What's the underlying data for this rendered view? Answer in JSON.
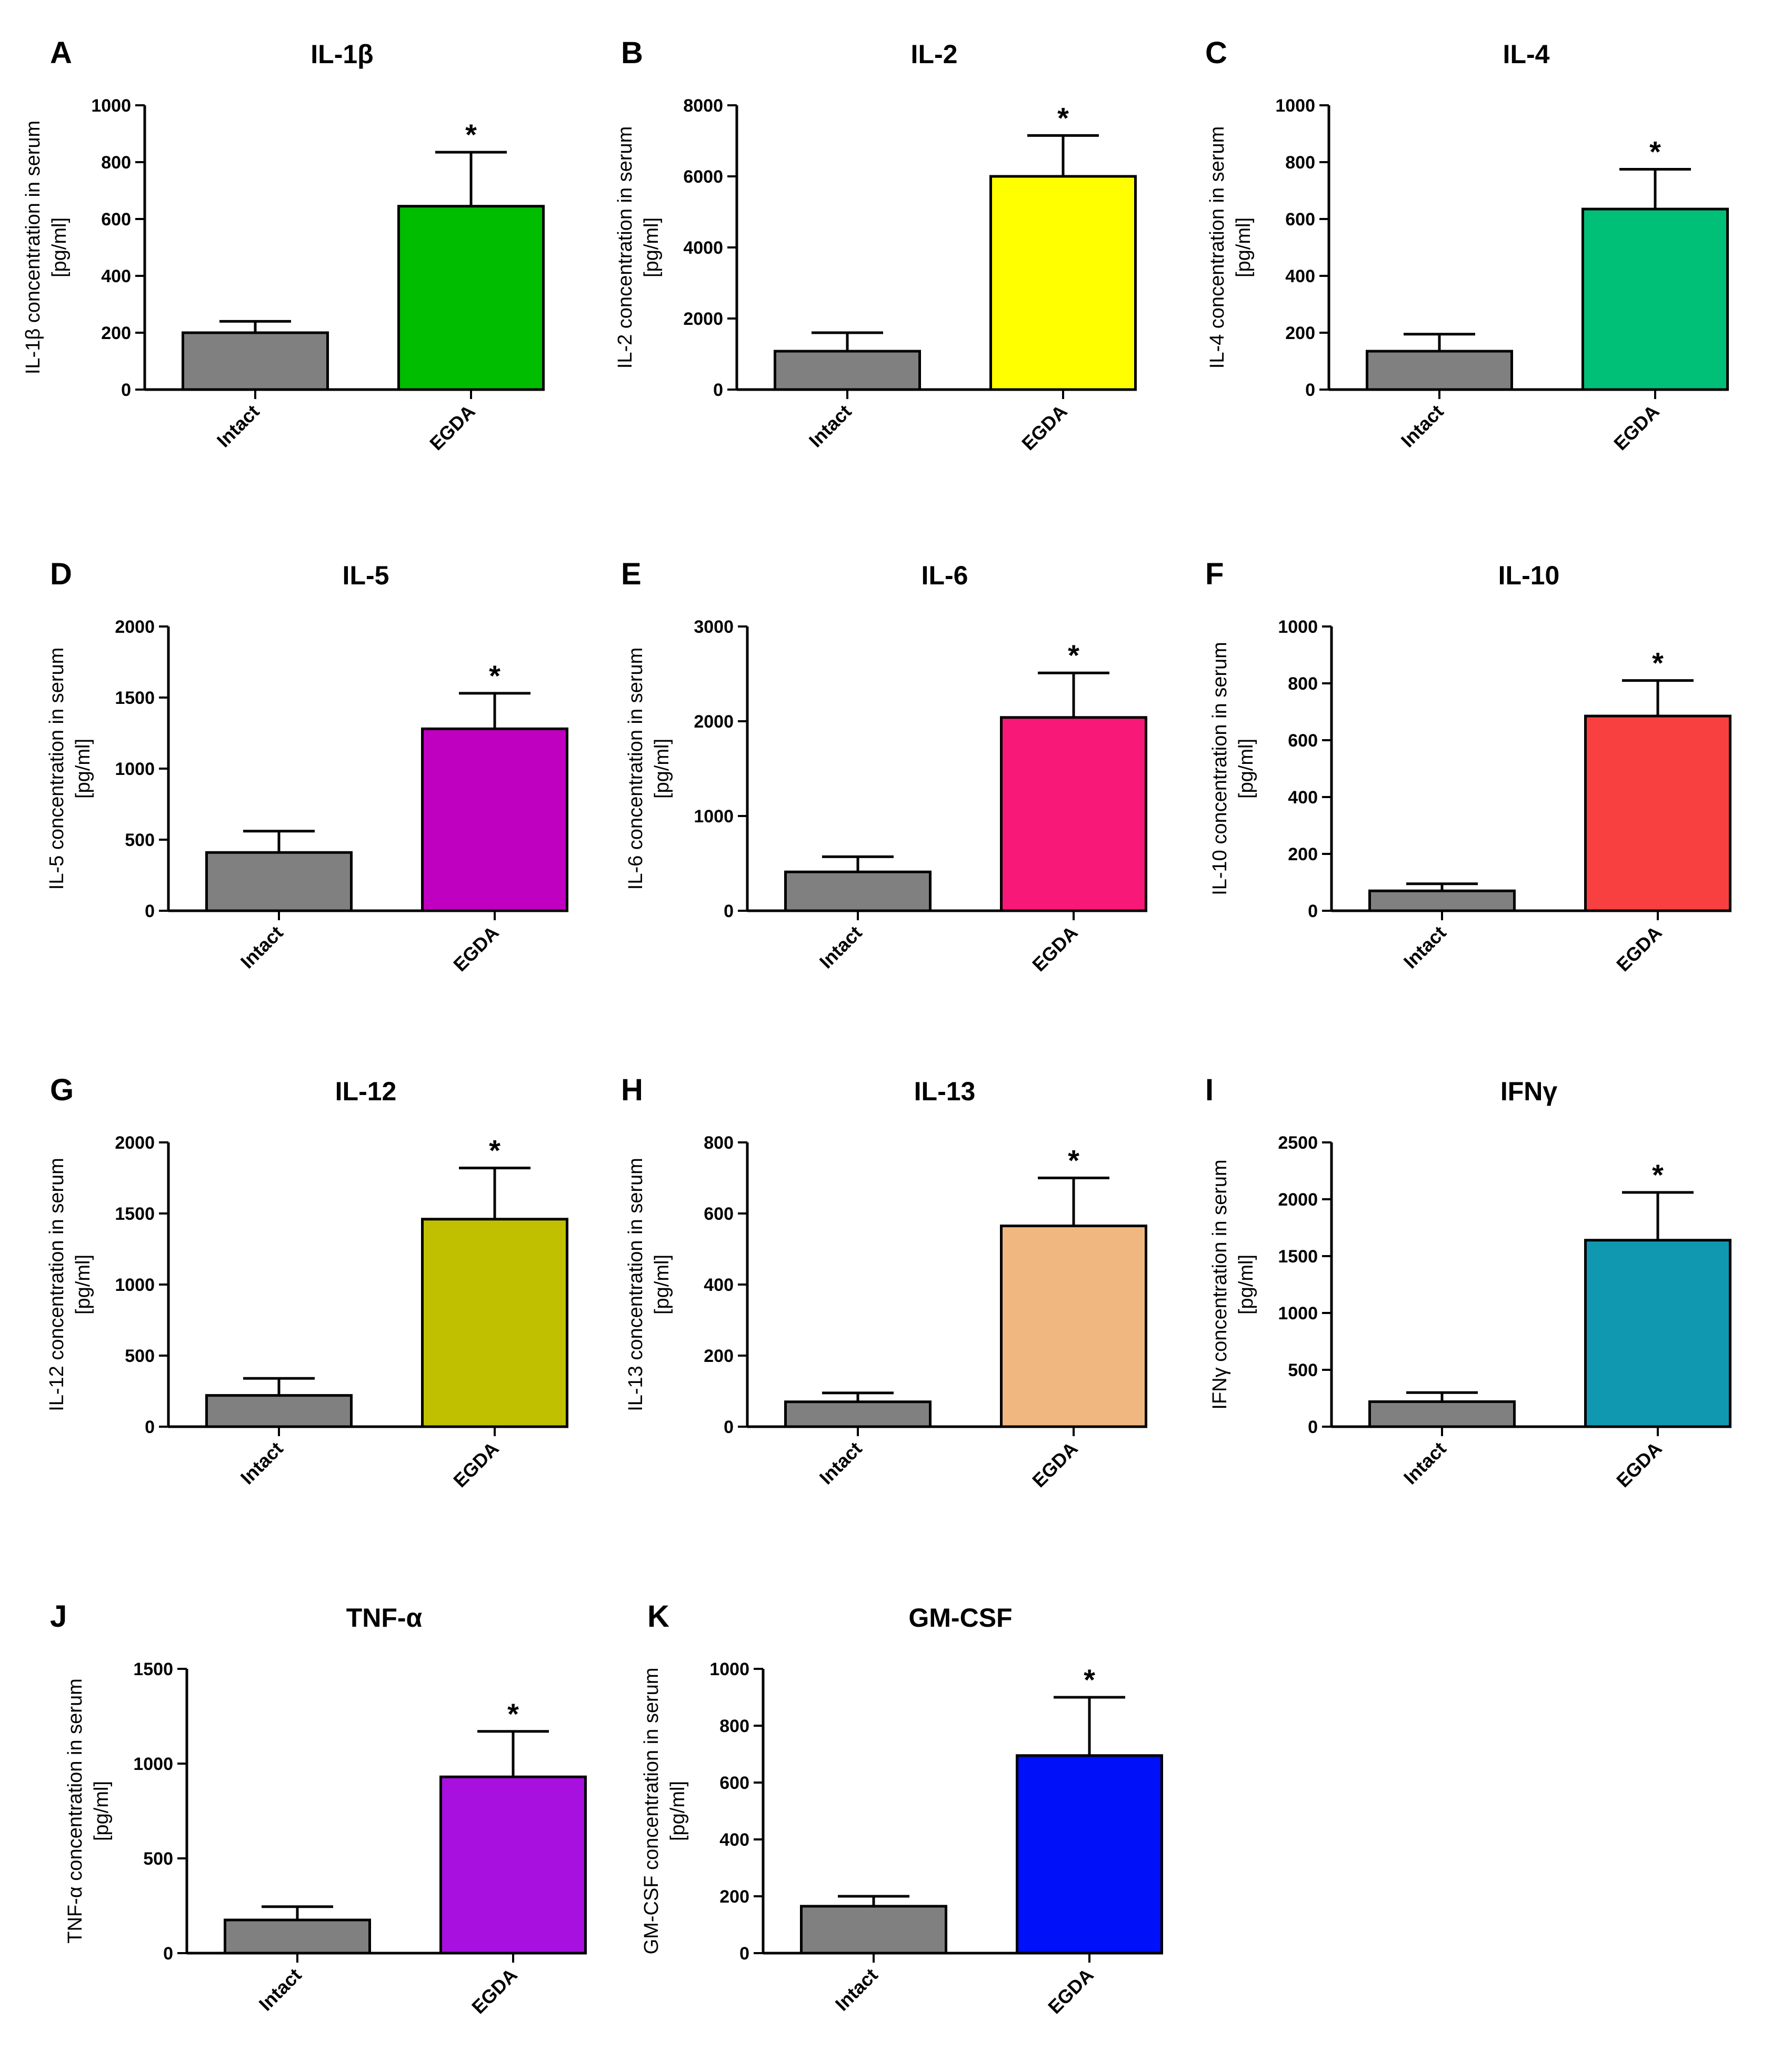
{
  "chart_data": [
    {
      "panel": "A",
      "type": "bar",
      "title": "IL-1β",
      "ylabel_lines": [
        "IL-1β concentration in serum",
        "[pg/ml]"
      ],
      "categories": [
        "Intact",
        "EGDA"
      ],
      "values": [
        200,
        645
      ],
      "errors": [
        40,
        190
      ],
      "colors": [
        "#808080",
        "#00bd00"
      ],
      "significance": [
        "",
        "*"
      ],
      "ylim": [
        0,
        1000
      ],
      "yticks": [
        0,
        200,
        400,
        600,
        800,
        1000
      ]
    },
    {
      "panel": "B",
      "type": "bar",
      "title": "IL-2",
      "ylabel_lines": [
        "IL-2 concentration in serum",
        "[pg/ml]"
      ],
      "categories": [
        "Intact",
        "EGDA"
      ],
      "values": [
        1080,
        6000
      ],
      "errors": [
        520,
        1150
      ],
      "colors": [
        "#808080",
        "#ffff00"
      ],
      "significance": [
        "",
        "*"
      ],
      "ylim": [
        0,
        8000
      ],
      "yticks": [
        0,
        2000,
        4000,
        6000,
        8000
      ]
    },
    {
      "panel": "C",
      "type": "bar",
      "title": "IL-4",
      "ylabel_lines": [
        "IL-4 concentration in serum",
        "[pg/ml]"
      ],
      "categories": [
        "Intact",
        "EGDA"
      ],
      "values": [
        135,
        635
      ],
      "errors": [
        60,
        140
      ],
      "colors": [
        "#808080",
        "#00c078"
      ],
      "significance": [
        "",
        "*"
      ],
      "ylim": [
        0,
        1000
      ],
      "yticks": [
        0,
        200,
        400,
        600,
        800,
        1000
      ]
    },
    {
      "panel": "D",
      "type": "bar",
      "title": "IL-5",
      "ylabel_lines": [
        "IL-5 concentration in serum",
        "[pg/ml]"
      ],
      "categories": [
        "Intact",
        "EGDA"
      ],
      "values": [
        410,
        1280
      ],
      "errors": [
        150,
        250
      ],
      "colors": [
        "#808080",
        "#c000c0"
      ],
      "significance": [
        "",
        "*"
      ],
      "ylim": [
        0,
        2000
      ],
      "yticks": [
        0,
        500,
        1000,
        1500,
        2000
      ]
    },
    {
      "panel": "E",
      "type": "bar",
      "title": "IL-6",
      "ylabel_lines": [
        "IL-6 concentration in serum",
        "[pg/ml]"
      ],
      "categories": [
        "Intact",
        "EGDA"
      ],
      "values": [
        410,
        2040
      ],
      "errors": [
        160,
        470
      ],
      "colors": [
        "#808080",
        "#f81878"
      ],
      "significance": [
        "",
        "*"
      ],
      "ylim": [
        0,
        3000
      ],
      "yticks": [
        0,
        1000,
        2000,
        3000
      ]
    },
    {
      "panel": "F",
      "type": "bar",
      "title": "IL-10",
      "ylabel_lines": [
        "IL-10 concentration in serum",
        "[pg/ml]"
      ],
      "categories": [
        "Intact",
        "EGDA"
      ],
      "values": [
        70,
        685
      ],
      "errors": [
        25,
        125
      ],
      "colors": [
        "#808080",
        "#f84040"
      ],
      "significance": [
        "",
        "*"
      ],
      "ylim": [
        0,
        1000
      ],
      "yticks": [
        0,
        200,
        400,
        600,
        800,
        1000
      ]
    },
    {
      "panel": "G",
      "type": "bar",
      "title": "IL-12",
      "ylabel_lines": [
        "IL-12 concentration in serum",
        "[pg/ml]"
      ],
      "categories": [
        "Intact",
        "EGDA"
      ],
      "values": [
        220,
        1460
      ],
      "errors": [
        120,
        360
      ],
      "colors": [
        "#808080",
        "#c0c000"
      ],
      "significance": [
        "",
        "*"
      ],
      "ylim": [
        0,
        2000
      ],
      "yticks": [
        0,
        500,
        1000,
        1500,
        2000
      ]
    },
    {
      "panel": "H",
      "type": "bar",
      "title": "IL-13",
      "ylabel_lines": [
        "IL-13 concentration in serum",
        "[pg/ml]"
      ],
      "categories": [
        "Intact",
        "EGDA"
      ],
      "values": [
        70,
        565
      ],
      "errors": [
        25,
        135
      ],
      "colors": [
        "#808080",
        "#f0b880"
      ],
      "significance": [
        "",
        "*"
      ],
      "ylim": [
        0,
        800
      ],
      "yticks": [
        0,
        200,
        400,
        600,
        800
      ]
    },
    {
      "panel": "I",
      "type": "bar",
      "title": "IFNγ",
      "ylabel_lines": [
        "IFNγ concentration in serum",
        "[pg/ml]"
      ],
      "categories": [
        "Intact",
        "EGDA"
      ],
      "values": [
        220,
        1640
      ],
      "errors": [
        80,
        420
      ],
      "colors": [
        "#808080",
        "#1098b0"
      ],
      "significance": [
        "",
        "*"
      ],
      "ylim": [
        0,
        2500
      ],
      "yticks": [
        0,
        500,
        1000,
        1500,
        2000,
        2500
      ]
    },
    {
      "panel": "J",
      "type": "bar",
      "title": "TNF-α",
      "ylabel_lines": [
        "TNF-α concentration in serum",
        "[pg/ml]"
      ],
      "categories": [
        "Intact",
        "EGDA"
      ],
      "values": [
        175,
        930
      ],
      "errors": [
        70,
        240
      ],
      "colors": [
        "#808080",
        "#a810e0"
      ],
      "significance": [
        "",
        "*"
      ],
      "ylim": [
        0,
        1500
      ],
      "yticks": [
        0,
        500,
        1000,
        1500
      ]
    },
    {
      "panel": "K",
      "type": "bar",
      "title": "GM-CSF",
      "ylabel_lines": [
        "GM-CSF concentration in serum",
        "[pg/ml]"
      ],
      "categories": [
        "Intact",
        "EGDA"
      ],
      "values": [
        165,
        695
      ],
      "errors": [
        35,
        205
      ],
      "colors": [
        "#808080",
        "#0010f8"
      ],
      "significance": [
        "",
        "*"
      ],
      "ylim": [
        0,
        1000
      ],
      "yticks": [
        0,
        200,
        400,
        600,
        800,
        1000
      ]
    }
  ]
}
